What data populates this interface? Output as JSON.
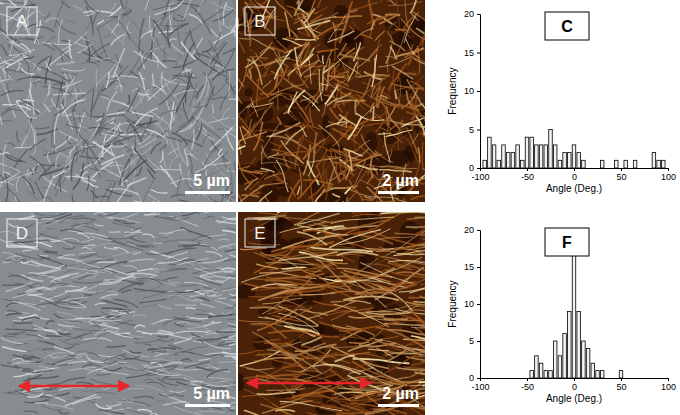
{
  "image_panels": [
    {
      "label": "A",
      "scale_bar": "5 µm"
    },
    {
      "label": "B",
      "scale_bar": "2 µm"
    },
    {
      "label": "D",
      "scale_bar": "5 µm"
    },
    {
      "label": "E",
      "scale_bar": "2 µm"
    }
  ],
  "chart_data": [
    {
      "type": "histogram",
      "panel_label": "C",
      "xlabel": "Angle (Deg.)",
      "ylabel": "Frequency",
      "color": "#f2f2f2",
      "bins": [
        -97.5,
        -92.5,
        -87.5,
        -82.5,
        -77.5,
        -72.5,
        -67.5,
        -62.5,
        -57.5,
        -52.5,
        -47.5,
        -42.5,
        -37.5,
        -32.5,
        -27.5,
        -22.5,
        -17.5,
        -12.5,
        -7.5,
        -2.5,
        2.5,
        7.5,
        12.5,
        17.5,
        22.5,
        27.5,
        32.5,
        37.5,
        42.5,
        47.5,
        52.5,
        57.5,
        62.5,
        67.5,
        72.5,
        77.5,
        82.5,
        87.5,
        92.5,
        97.5
      ],
      "counts": [
        1,
        4,
        3,
        1,
        3,
        2,
        2,
        3,
        1,
        4,
        4,
        3,
        3,
        3,
        5,
        3,
        1,
        2,
        2,
        3,
        2,
        1,
        0,
        0,
        0,
        1,
        0,
        0,
        1,
        0,
        1,
        0,
        1,
        0,
        0,
        0,
        2,
        1,
        1
      ],
      "xlim": [
        -100,
        100
      ],
      "xticks": [
        -100,
        -50,
        0,
        50,
        100
      ],
      "ylim": [
        0,
        20
      ],
      "yticks": [
        0,
        5,
        10,
        15,
        20
      ]
    },
    {
      "type": "histogram",
      "panel_label": "F",
      "xlabel": "Angle (Deg.)",
      "ylabel": "Frequency",
      "color": "#f2f2f2",
      "bins": [
        -97.5,
        -92.5,
        -87.5,
        -82.5,
        -77.5,
        -72.5,
        -67.5,
        -62.5,
        -57.5,
        -52.5,
        -47.5,
        -42.5,
        -37.5,
        -32.5,
        -27.5,
        -22.5,
        -17.5,
        -12.5,
        -7.5,
        -2.5,
        2.5,
        7.5,
        12.5,
        17.5,
        22.5,
        27.5,
        32.5,
        37.5,
        42.5,
        47.5,
        52.5,
        57.5,
        62.5,
        67.5,
        72.5,
        77.5,
        82.5,
        87.5,
        92.5,
        97.5
      ],
      "counts": [
        0,
        0,
        0,
        0,
        0,
        0,
        0,
        0,
        0,
        0,
        1,
        3,
        2,
        1,
        1,
        5,
        3,
        6,
        9,
        18,
        9,
        5,
        4,
        2,
        1,
        1,
        0,
        0,
        0,
        1,
        0,
        0,
        0,
        0,
        0,
        0,
        0,
        0,
        0
      ],
      "xlim": [
        -100,
        100
      ],
      "xticks": [
        -100,
        -50,
        0,
        50,
        100
      ],
      "ylim": [
        0,
        20
      ],
      "yticks": [
        0,
        5,
        10,
        15,
        20
      ]
    }
  ]
}
